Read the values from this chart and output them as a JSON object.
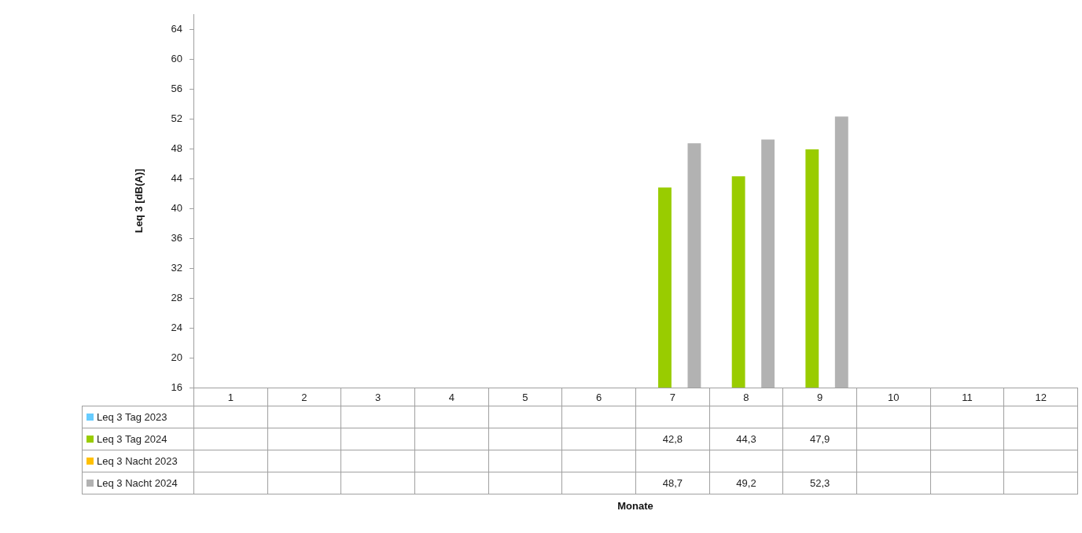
{
  "chart_data": {
    "type": "bar",
    "annotations": [
      "Monate"
    ],
    "ylabel": "Leq 3 [dB(A)]",
    "categories": [
      "1",
      "2",
      "3",
      "4",
      "5",
      "6",
      "7",
      "8",
      "9",
      "10",
      "11",
      "12"
    ],
    "series": [
      {
        "name": "Leq 3 Tag 2023",
        "color": "#66ccff",
        "values": [
          null,
          null,
          null,
          null,
          null,
          null,
          null,
          null,
          null,
          null,
          null,
          null
        ],
        "value_labels": [
          null,
          null,
          null,
          null,
          null,
          null,
          null,
          null,
          null,
          null,
          null,
          null
        ]
      },
      {
        "name": "Leq 3 Tag 2024",
        "color": "#99cc00",
        "values": [
          null,
          null,
          null,
          null,
          null,
          null,
          42.8,
          44.3,
          47.9,
          null,
          null,
          null
        ],
        "value_labels": [
          null,
          null,
          null,
          null,
          null,
          null,
          "42,8",
          "44,3",
          "47,9",
          null,
          null,
          null
        ]
      },
      {
        "name": "Leq 3 Nacht 2023",
        "color": "#ffc000",
        "values": [
          null,
          null,
          null,
          null,
          null,
          null,
          null,
          null,
          null,
          null,
          null,
          null
        ],
        "value_labels": [
          null,
          null,
          null,
          null,
          null,
          null,
          null,
          null,
          null,
          null,
          null,
          null
        ]
      },
      {
        "name": "Leq 3 Nacht 2024",
        "color": "#b2b2b2",
        "values": [
          null,
          null,
          null,
          null,
          null,
          null,
          48.7,
          49.2,
          52.3,
          null,
          null,
          null
        ],
        "value_labels": [
          null,
          null,
          null,
          null,
          null,
          null,
          "48,7",
          "49,2",
          "52,3",
          null,
          null,
          null
        ]
      }
    ],
    "ylim": [
      16,
      66
    ],
    "yticks": [
      16,
      20,
      24,
      28,
      32,
      36,
      40,
      44,
      48,
      52,
      56,
      60,
      64
    ],
    "legend": "bottom left"
  }
}
